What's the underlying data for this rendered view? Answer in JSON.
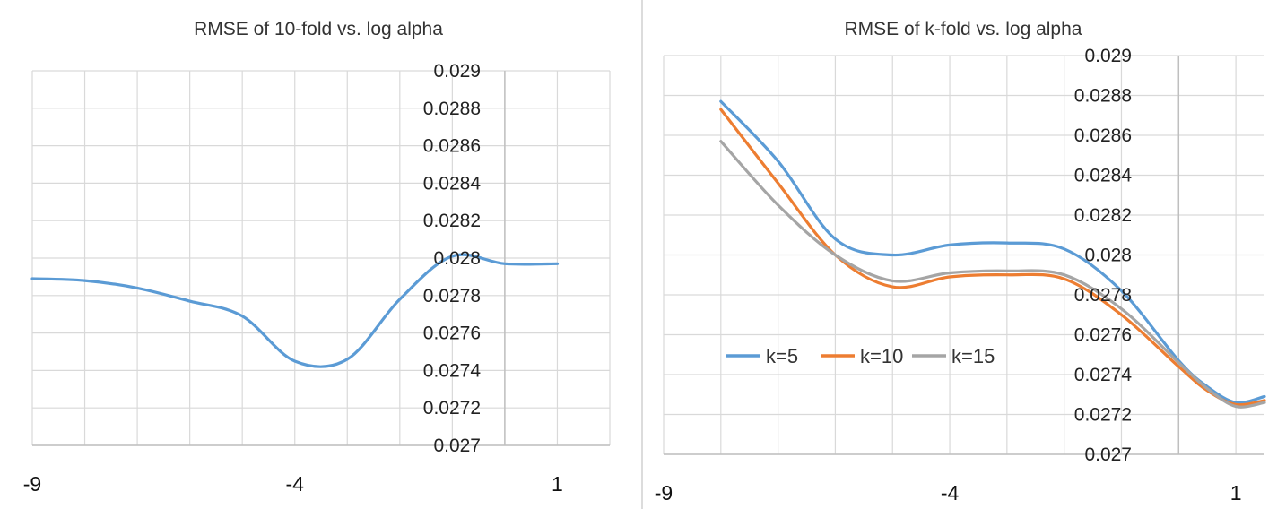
{
  "chart_data": [
    {
      "type": "line",
      "title": "RMSE of 10-fold vs. log alpha",
      "xlabel": "",
      "ylabel": "",
      "xlim": [
        -9,
        2
      ],
      "ylim": [
        0.027,
        0.029
      ],
      "x_ticks": [
        -9,
        -4,
        1
      ],
      "x_tick_labels": [
        "-9",
        "-4",
        "1"
      ],
      "y_ticks": [
        0.027,
        0.0272,
        0.0274,
        0.0276,
        0.0278,
        0.028,
        0.0282,
        0.0284,
        0.0286,
        0.0288,
        0.029
      ],
      "y_tick_labels": [
        "0.027",
        "0.0272",
        "0.0274",
        "0.0276",
        "0.0278",
        "0.028",
        "0.0282",
        "0.0284",
        "0.0286",
        "0.0288",
        "0.029"
      ],
      "y_axis_crosses_at_x": 0,
      "grid": true,
      "legend": null,
      "series": [
        {
          "name": "10-fold",
          "color": "#5b9bd5",
          "x": [
            -9,
            -8,
            -7,
            -6,
            -5,
            -4,
            -3,
            -2,
            -1,
            0,
            1
          ],
          "y": [
            0.02789,
            0.02788,
            0.02784,
            0.02777,
            0.02769,
            0.02745,
            0.02746,
            0.02778,
            0.02801,
            0.02797,
            0.02797
          ]
        }
      ]
    },
    {
      "type": "line",
      "title": "RMSE of k-fold vs. log alpha",
      "xlabel": "",
      "ylabel": "",
      "xlim": [
        -9,
        1.5
      ],
      "ylim": [
        0.027,
        0.029
      ],
      "x_ticks": [
        -9,
        -4,
        1
      ],
      "x_tick_labels": [
        "-9",
        "-4",
        "1"
      ],
      "y_ticks": [
        0.027,
        0.0272,
        0.0274,
        0.0276,
        0.0278,
        0.028,
        0.0282,
        0.0284,
        0.0286,
        0.0288,
        0.029
      ],
      "y_tick_labels": [
        "0.027",
        "0.0272",
        "0.0274",
        "0.0276",
        "0.0278",
        "0.028",
        "0.0282",
        "0.0284",
        "0.0286",
        "0.0288",
        "0.029"
      ],
      "y_axis_crosses_at_x": 0,
      "grid": true,
      "legend": "middle-left",
      "series": [
        {
          "name": "k=5",
          "color": "#5b9bd5",
          "x": [
            -8,
            -7,
            -6,
            -5,
            -4,
            -3,
            -2,
            -1,
            0,
            0.5,
            1,
            1.5
          ],
          "y": [
            0.02877,
            0.02847,
            0.02808,
            0.028,
            0.02805,
            0.02806,
            0.02803,
            0.02782,
            0.02747,
            0.02734,
            0.02726,
            0.02729
          ]
        },
        {
          "name": "k=10",
          "color": "#ed7d31",
          "x": [
            -8,
            -7,
            -6,
            -5,
            -4,
            -3,
            -2,
            -1,
            0,
            0.5,
            1,
            1.5
          ],
          "y": [
            0.02873,
            0.02836,
            0.028,
            0.02784,
            0.02789,
            0.0279,
            0.02788,
            0.0277,
            0.02744,
            0.02732,
            0.02725,
            0.02727
          ]
        },
        {
          "name": "k=15",
          "color": "#a5a5a5",
          "x": [
            -8,
            -7,
            -6,
            -5,
            -4,
            -3,
            -2,
            -1,
            0,
            0.5,
            1,
            1.5
          ],
          "y": [
            0.02857,
            0.02825,
            0.028,
            0.02787,
            0.02791,
            0.02792,
            0.0279,
            0.02773,
            0.02746,
            0.02733,
            0.02724,
            0.02726
          ]
        }
      ]
    }
  ]
}
